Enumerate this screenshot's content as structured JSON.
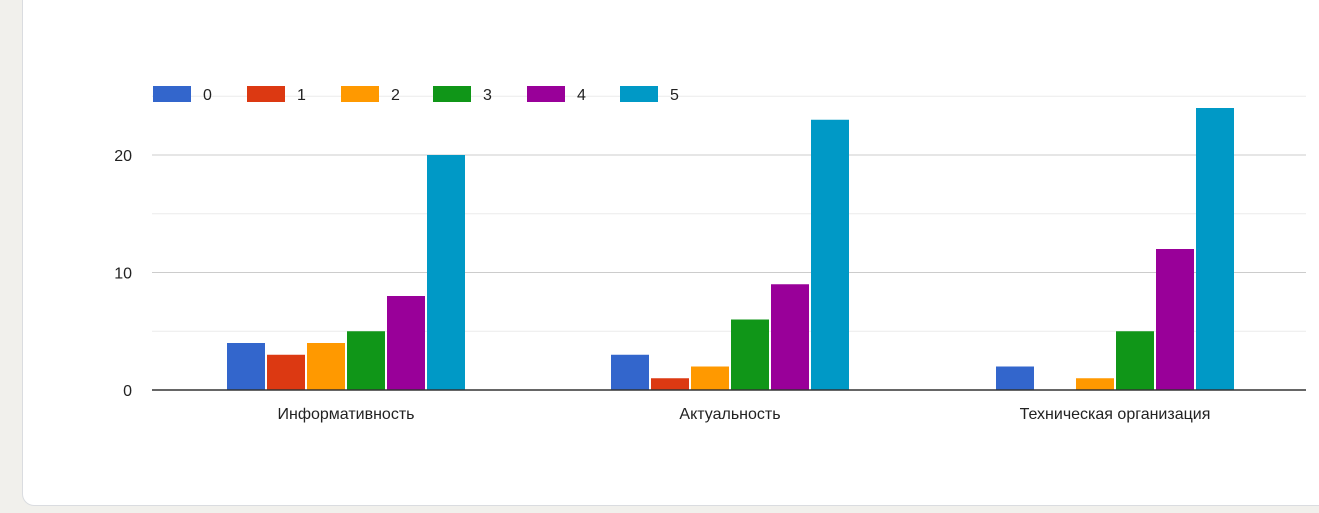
{
  "chart_data": {
    "type": "bar",
    "title": "",
    "xlabel": "",
    "ylabel": "",
    "categories": [
      "Информативность",
      "Актуальность",
      "Техническая организация"
    ],
    "series": [
      {
        "name": "0",
        "color": "#3366cc",
        "values": [
          4,
          3,
          2
        ]
      },
      {
        "name": "1",
        "color": "#dc3912",
        "values": [
          3,
          1,
          0
        ]
      },
      {
        "name": "2",
        "color": "#ff9900",
        "values": [
          4,
          2,
          1
        ]
      },
      {
        "name": "3",
        "color": "#109618",
        "values": [
          5,
          6,
          5
        ]
      },
      {
        "name": "4",
        "color": "#990099",
        "values": [
          8,
          9,
          12
        ]
      },
      {
        "name": "5",
        "color": "#0099c6",
        "values": [
          20,
          23,
          24
        ]
      }
    ],
    "yticks": [
      0,
      10,
      20
    ],
    "ylim": [
      0,
      25
    ],
    "grid": true,
    "legend_position": "top-left"
  }
}
